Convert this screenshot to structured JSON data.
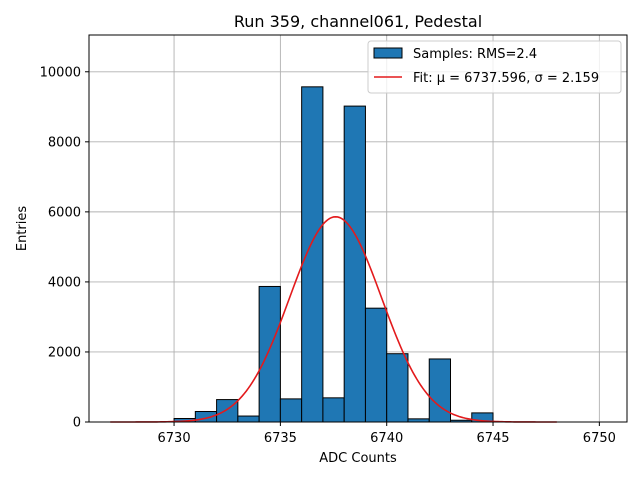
{
  "chart_data": {
    "type": "bar",
    "title": "Run 359, channel061, Pedestal",
    "xlabel": "ADC Counts",
    "ylabel": "Entries",
    "xlim": [
      6726,
      6751.3
    ],
    "ylim": [
      0,
      11050
    ],
    "xticks": [
      6730,
      6735,
      6740,
      6745,
      6750
    ],
    "yticks": [
      0,
      2000,
      4000,
      6000,
      8000,
      10000
    ],
    "grid": true,
    "colors": {
      "bar_fill": "#1f77b4",
      "bar_edge": "#000000",
      "fit_line": "#e31a1c",
      "grid": "#b0b0b0"
    },
    "bin_width": 1,
    "bins": [
      {
        "left": 6730,
        "count": 100
      },
      {
        "left": 6731,
        "count": 300
      },
      {
        "left": 6732,
        "count": 640
      },
      {
        "left": 6733,
        "count": 170
      },
      {
        "left": 6734,
        "count": 3870
      },
      {
        "left": 6735,
        "count": 660
      },
      {
        "left": 6736,
        "count": 9570
      },
      {
        "left": 6737,
        "count": 690
      },
      {
        "left": 6738,
        "count": 9020
      },
      {
        "left": 6739,
        "count": 3250
      },
      {
        "left": 6740,
        "count": 1950
      },
      {
        "left": 6741,
        "count": 90
      },
      {
        "left": 6742,
        "count": 1800
      },
      {
        "left": 6743,
        "count": 50
      },
      {
        "left": 6744,
        "count": 260
      }
    ],
    "fit": {
      "mu": 6737.596,
      "sigma": 2.159,
      "amplitude": 5860,
      "x_range": [
        6727,
        6748
      ]
    },
    "legend": {
      "position": "top-right",
      "samples_label": "Samples: RMS=2.4",
      "fit_label": "Fit: μ = 6737.596, σ = 2.159"
    }
  }
}
